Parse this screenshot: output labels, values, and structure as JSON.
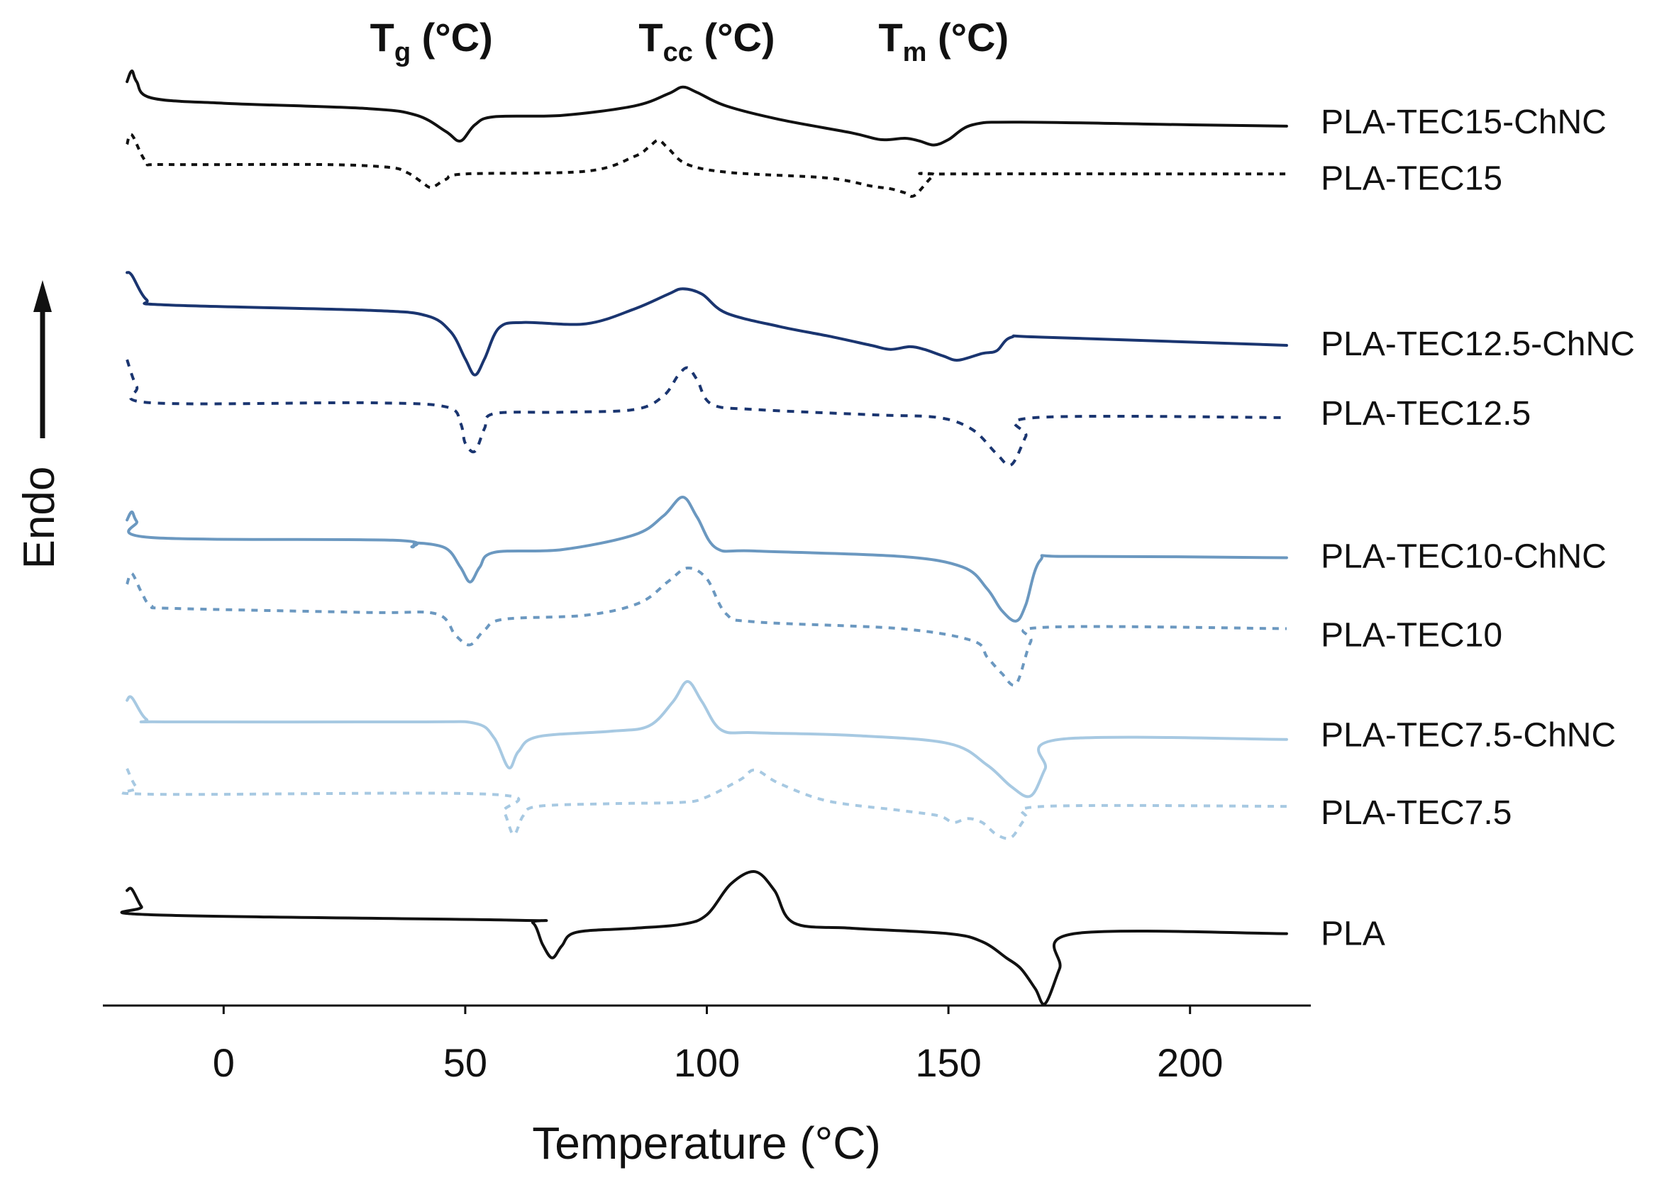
{
  "chart_data": {
    "type": "line",
    "title": "",
    "xlabel": "Temperature (°C)",
    "ylabel": "Endo",
    "xlim": [
      -25,
      225
    ],
    "xticks": [
      0,
      50,
      100,
      150,
      200
    ],
    "grid": false,
    "annotations": [
      {
        "main": "T",
        "sub": "g",
        "unit": " (°C)",
        "x": 43
      },
      {
        "main": "T",
        "sub": "cc",
        "unit": " (°C)",
        "x": 100
      },
      {
        "main": "T",
        "sub": "m",
        "unit": " (°C)",
        "x": 149
      }
    ],
    "series": [
      {
        "name": "PLA-TEC15-ChNC",
        "color": "#111111",
        "dash": "solid",
        "baseline": 0.3,
        "points": [
          [
            -20,
            1.2
          ],
          [
            -19,
            2.0
          ],
          [
            -18,
            1.2
          ],
          [
            -15,
            0
          ],
          [
            0,
            -0.4
          ],
          [
            30,
            -0.8
          ],
          [
            40,
            -1.3
          ],
          [
            46,
            -2.5
          ],
          [
            49,
            -3.2
          ],
          [
            52,
            -2.0
          ],
          [
            56,
            -1.4
          ],
          [
            70,
            -1.3
          ],
          [
            85,
            -0.6
          ],
          [
            92,
            0.3
          ],
          [
            95,
            0.8
          ],
          [
            98,
            0.4
          ],
          [
            104,
            -0.6
          ],
          [
            115,
            -1.6
          ],
          [
            130,
            -2.6
          ],
          [
            136,
            -3.1
          ],
          [
            141,
            -3.0
          ],
          [
            144,
            -3.2
          ],
          [
            147,
            -3.5
          ],
          [
            150,
            -3.1
          ],
          [
            155,
            -2.0
          ],
          [
            165,
            -1.8
          ],
          [
            200,
            -2.0
          ],
          [
            220,
            -2.1
          ]
        ]
      },
      {
        "name": "PLA-TEC15",
        "color": "#111111",
        "dash": "8,8",
        "baseline": 1.2,
        "points": [
          [
            -20,
            1.5
          ],
          [
            -19,
            2.2
          ],
          [
            -16,
            0.2
          ],
          [
            -12,
            0
          ],
          [
            20,
            0
          ],
          [
            34,
            -0.2
          ],
          [
            38,
            -0.6
          ],
          [
            41,
            -1.3
          ],
          [
            43,
            -1.7
          ],
          [
            46,
            -1.1
          ],
          [
            50,
            -0.7
          ],
          [
            75,
            -0.5
          ],
          [
            85,
            0.6
          ],
          [
            88,
            1.3
          ],
          [
            90,
            1.8
          ],
          [
            92,
            1.2
          ],
          [
            96,
            0
          ],
          [
            105,
            -0.6
          ],
          [
            125,
            -1.0
          ],
          [
            134,
            -1.6
          ],
          [
            138,
            -1.8
          ],
          [
            141,
            -2.1
          ],
          [
            143,
            -2.3
          ],
          [
            147,
            -0.8
          ],
          [
            150,
            -0.7
          ],
          [
            220,
            -0.7
          ]
        ]
      },
      {
        "name": "PLA-TEC12.5-ChNC",
        "color": "#1a3570",
        "dash": "solid",
        "baseline": 1.4,
        "points": [
          [
            -20,
            2.4
          ],
          [
            -19,
            2.2
          ],
          [
            -16,
            0.4
          ],
          [
            -12,
            0
          ],
          [
            30,
            -0.4
          ],
          [
            42,
            -0.8
          ],
          [
            47,
            -2.0
          ],
          [
            50,
            -4.0
          ],
          [
            52,
            -5.2
          ],
          [
            54,
            -4.0
          ],
          [
            57,
            -1.7
          ],
          [
            62,
            -1.3
          ],
          [
            75,
            -1.4
          ],
          [
            85,
            -0.3
          ],
          [
            92,
            0.8
          ],
          [
            95,
            1.2
          ],
          [
            99,
            0.8
          ],
          [
            104,
            -0.6
          ],
          [
            115,
            -1.6
          ],
          [
            125,
            -2.3
          ],
          [
            134,
            -3.0
          ],
          [
            138,
            -3.3
          ],
          [
            142,
            -3.1
          ],
          [
            145,
            -3.3
          ],
          [
            149,
            -3.8
          ],
          [
            152,
            -4.1
          ],
          [
            157,
            -3.6
          ],
          [
            160,
            -3.4
          ],
          [
            163,
            -2.4
          ],
          [
            170,
            -2.4
          ],
          [
            220,
            -3.0
          ]
        ]
      },
      {
        "name": "PLA-TEC12.5",
        "color": "#1a3570",
        "dash": "10,10",
        "baseline": 2.5,
        "points": [
          [
            -20,
            3.2
          ],
          [
            -18,
            1.2
          ],
          [
            -15,
            0
          ],
          [
            30,
            0
          ],
          [
            46,
            -0.3
          ],
          [
            49,
            -1.5
          ],
          [
            50,
            -3.0
          ],
          [
            52,
            -3.6
          ],
          [
            54,
            -1.9
          ],
          [
            56,
            -0.8
          ],
          [
            70,
            -0.7
          ],
          [
            85,
            -0.5
          ],
          [
            91,
            0.5
          ],
          [
            94,
            2.0
          ],
          [
            96,
            2.6
          ],
          [
            98,
            1.7
          ],
          [
            101,
            -0.1
          ],
          [
            110,
            -0.5
          ],
          [
            135,
            -0.9
          ],
          [
            148,
            -1.1
          ],
          [
            155,
            -2.0
          ],
          [
            160,
            -3.8
          ],
          [
            163,
            -4.6
          ],
          [
            166,
            -2.5
          ],
          [
            168,
            -1.1
          ],
          [
            220,
            -1.1
          ]
        ]
      },
      {
        "name": "PLA-TEC10-ChNC",
        "color": "#6b98c0",
        "dash": "solid",
        "baseline": 2.5,
        "points": [
          [
            -20,
            1.3
          ],
          [
            -19,
            1.9
          ],
          [
            -18,
            1.2
          ],
          [
            -15,
            0
          ],
          [
            35,
            -0.2
          ],
          [
            39,
            -0.7
          ],
          [
            40,
            -0.4
          ],
          [
            46,
            -0.8
          ],
          [
            49,
            -2.2
          ],
          [
            51,
            -3.3
          ],
          [
            53,
            -2.2
          ],
          [
            56,
            -1.1
          ],
          [
            70,
            -0.9
          ],
          [
            85,
            0.2
          ],
          [
            91,
            1.6
          ],
          [
            95,
            3.0
          ],
          [
            98,
            1.5
          ],
          [
            102,
            -0.8
          ],
          [
            110,
            -1.0
          ],
          [
            140,
            -1.4
          ],
          [
            153,
            -2.2
          ],
          [
            158,
            -3.8
          ],
          [
            161,
            -5.4
          ],
          [
            164,
            -6.2
          ],
          [
            166,
            -5.0
          ],
          [
            169,
            -1.7
          ],
          [
            175,
            -1.4
          ],
          [
            220,
            -1.5
          ]
        ]
      },
      {
        "name": "PLA-TEC10",
        "color": "#6b98c0",
        "dash": "9,9",
        "baseline": 2.2,
        "points": [
          [
            -20,
            1.8
          ],
          [
            -19,
            2.6
          ],
          [
            -17,
            1.2
          ],
          [
            -15,
            0.2
          ],
          [
            -10,
            0
          ],
          [
            30,
            -0.3
          ],
          [
            44,
            -0.4
          ],
          [
            48,
            -2.0
          ],
          [
            51,
            -2.7
          ],
          [
            54,
            -1.6
          ],
          [
            58,
            -0.8
          ],
          [
            75,
            -0.5
          ],
          [
            86,
            0.4
          ],
          [
            92,
            2.0
          ],
          [
            96,
            3.0
          ],
          [
            100,
            2.2
          ],
          [
            104,
            -0.4
          ],
          [
            110,
            -1.0
          ],
          [
            140,
            -1.5
          ],
          [
            155,
            -2.4
          ],
          [
            158,
            -3.6
          ],
          [
            161,
            -4.8
          ],
          [
            164,
            -5.6
          ],
          [
            167,
            -2.5
          ],
          [
            170,
            -1.4
          ],
          [
            220,
            -1.5
          ]
        ]
      },
      {
        "name": "PLA-TEC7.5-ChNC",
        "color": "#a7c9e2",
        "dash": "solid",
        "baseline": 1.3,
        "points": [
          [
            -20,
            1.6
          ],
          [
            -19,
            1.8
          ],
          [
            -16,
            0.2
          ],
          [
            -12,
            0
          ],
          [
            40,
            0
          ],
          [
            52,
            -0.1
          ],
          [
            56,
            -1.2
          ],
          [
            59,
            -3.4
          ],
          [
            61,
            -2.2
          ],
          [
            65,
            -1.1
          ],
          [
            80,
            -0.7
          ],
          [
            88,
            -0.3
          ],
          [
            93,
            1.5
          ],
          [
            96,
            3.0
          ],
          [
            99,
            1.5
          ],
          [
            103,
            -0.6
          ],
          [
            110,
            -0.8
          ],
          [
            130,
            -1.0
          ],
          [
            150,
            -1.6
          ],
          [
            158,
            -3.2
          ],
          [
            163,
            -4.8
          ],
          [
            167,
            -5.5
          ],
          [
            170,
            -3.5
          ],
          [
            173,
            -1.3
          ],
          [
            220,
            -1.3
          ]
        ]
      },
      {
        "name": "PLA-TEC7.5",
        "color": "#a7c9e2",
        "dash": "9,9",
        "baseline": 0.9,
        "points": [
          [
            -20,
            1.9
          ],
          [
            -18,
            0.5
          ],
          [
            -15,
            0
          ],
          [
            55,
            0
          ],
          [
            58,
            -1.3
          ],
          [
            60,
            -3.0
          ],
          [
            62,
            -1.6
          ],
          [
            65,
            -0.9
          ],
          [
            80,
            -0.7
          ],
          [
            95,
            -0.6
          ],
          [
            100,
            -0.2
          ],
          [
            107,
            1.1
          ],
          [
            110,
            1.8
          ],
          [
            115,
            0.8
          ],
          [
            125,
            -0.5
          ],
          [
            140,
            -1.2
          ],
          [
            148,
            -1.6
          ],
          [
            151,
            -2.1
          ],
          [
            154,
            -1.8
          ],
          [
            157,
            -2.1
          ],
          [
            160,
            -3.0
          ],
          [
            163,
            -3.2
          ],
          [
            166,
            -1.8
          ],
          [
            170,
            -0.9
          ],
          [
            220,
            -0.9
          ]
        ]
      },
      {
        "name": "PLA",
        "color": "#111111",
        "dash": "solid",
        "baseline": 1.0,
        "points": [
          [
            -20,
            1.8
          ],
          [
            -19,
            1.9
          ],
          [
            -17,
            0.6
          ],
          [
            -15,
            0
          ],
          [
            60,
            -0.4
          ],
          [
            64,
            -0.6
          ],
          [
            66,
            -2.2
          ],
          [
            68,
            -3.2
          ],
          [
            70,
            -2.3
          ],
          [
            73,
            -1.3
          ],
          [
            85,
            -1.0
          ],
          [
            95,
            -0.7
          ],
          [
            100,
            0
          ],
          [
            105,
            2.3
          ],
          [
            110,
            3.2
          ],
          [
            114,
            1.8
          ],
          [
            118,
            -0.6
          ],
          [
            130,
            -1.0
          ],
          [
            150,
            -1.4
          ],
          [
            157,
            -2.0
          ],
          [
            162,
            -3.2
          ],
          [
            165,
            -4.0
          ],
          [
            168,
            -5.5
          ],
          [
            170,
            -6.6
          ],
          [
            173,
            -4.0
          ],
          [
            176,
            -1.4
          ],
          [
            220,
            -1.4
          ]
        ]
      }
    ]
  }
}
